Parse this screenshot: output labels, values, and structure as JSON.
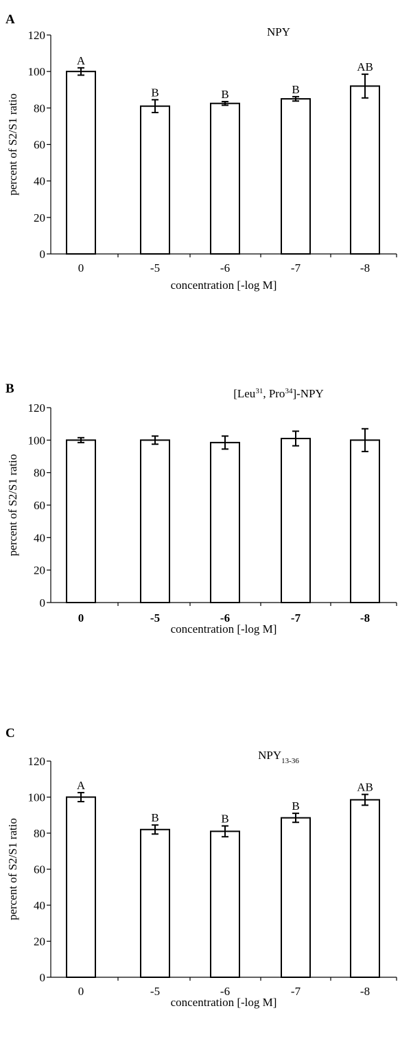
{
  "chart_data": [
    {
      "panel": "A",
      "type": "bar",
      "title_main": "NPY",
      "title_sub": "",
      "title_rest": "",
      "categories": [
        "0",
        "-5",
        "-6",
        "-7",
        "-8"
      ],
      "values": [
        100,
        81,
        82.5,
        85,
        92
      ],
      "errors": [
        2,
        3.5,
        1,
        1.2,
        6.5
      ],
      "group_labels": [
        "A",
        "B",
        "B",
        "B",
        "AB"
      ],
      "ylabel": "percent of S2/S1 ratio",
      "xlabel": "concentration [-log M]",
      "ylim": [
        0,
        120
      ],
      "yticks": [
        0,
        20,
        40,
        60,
        80,
        100,
        120
      ],
      "grid": false
    },
    {
      "panel": "B",
      "type": "bar",
      "title_main": "[Leu",
      "title_sub": "",
      "title_rest": "",
      "title_parts": [
        {
          "text": "[Leu",
          "kind": "normal"
        },
        {
          "text": "31",
          "kind": "sup"
        },
        {
          "text": ", Pro",
          "kind": "normal"
        },
        {
          "text": "34",
          "kind": "sup"
        },
        {
          "text": "]-NPY",
          "kind": "normal"
        }
      ],
      "categories": [
        "0",
        "-5",
        "-6",
        "-7",
        "-8"
      ],
      "values": [
        100,
        100,
        98.5,
        101,
        100
      ],
      "errors": [
        1.5,
        2.5,
        4,
        4.5,
        7
      ],
      "group_labels": [
        "",
        "",
        "",
        "",
        ""
      ],
      "ylabel": "percent of S2/S1 ratio",
      "xlabel": "concentration [-log M]",
      "ylim": [
        0,
        120
      ],
      "yticks": [
        0,
        20,
        40,
        60,
        80,
        100,
        120
      ],
      "grid": false
    },
    {
      "panel": "C",
      "type": "bar",
      "title_parts": [
        {
          "text": "NPY",
          "kind": "normal"
        },
        {
          "text": "13-36",
          "kind": "sub"
        }
      ],
      "categories": [
        "0",
        "-5",
        "-6",
        "-7",
        "-8"
      ],
      "values": [
        100,
        82,
        81,
        88.5,
        98.5
      ],
      "errors": [
        2.5,
        2.5,
        3,
        2.5,
        3
      ],
      "group_labels": [
        "A",
        "B",
        "B",
        "B",
        "AB"
      ],
      "ylabel": "percent of S2/S1 ratio",
      "xlabel": "concentration [-log M]",
      "ylim": [
        0,
        120
      ],
      "yticks": [
        0,
        20,
        40,
        60,
        80,
        100,
        120
      ],
      "grid": false
    }
  ]
}
